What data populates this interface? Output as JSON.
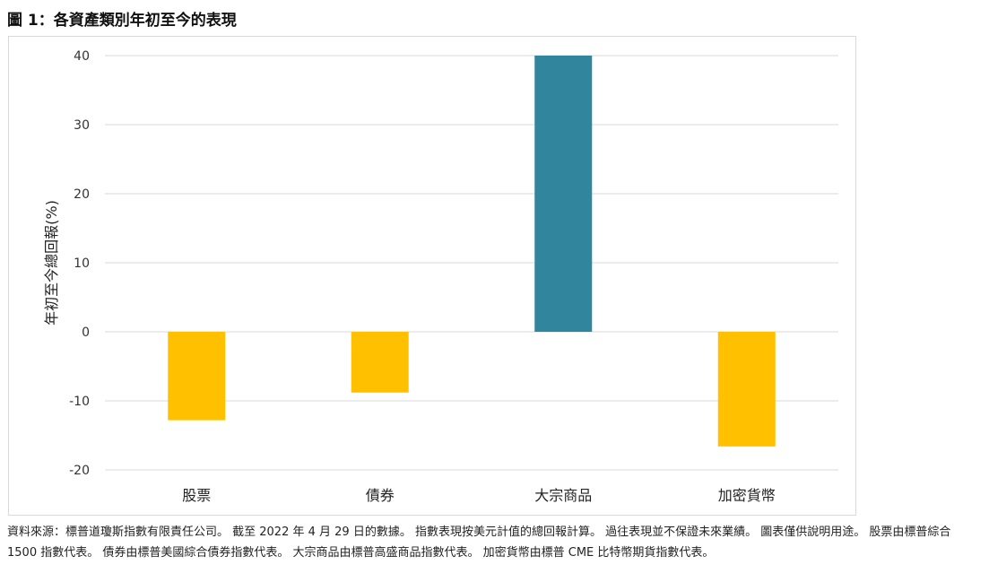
{
  "figure_title": "圖 1：各資產類別年初至今的表現",
  "footnote": "資料來源：標普道瓊斯指數有限責任公司。 截至 2022 年 4 月 29 日的數據。 指數表現按美元計值的總回報計算。 過往表現並不保證未來業績。 圖表僅供說明用途。 股票由標普綜合 1500 指數代表。 債券由標普美國綜合債券指數代表。 大宗商品由標普高盛商品指數代表。 加密貨幣由標普 CME 比特幣期貨指數代表。",
  "chart_data": {
    "type": "bar",
    "categories": [
      "股票",
      "債券",
      "大宗商品",
      "加密貨幣"
    ],
    "values": [
      -12.8,
      -8.8,
      40.0,
      -16.6
    ],
    "bar_colors": [
      "#FFC000",
      "#FFC000",
      "#31859C",
      "#FFC000"
    ],
    "title": "",
    "xlabel": "",
    "ylabel": "年初至今總回報(%)",
    "ylim": [
      -20,
      40
    ],
    "yticks": [
      40,
      30,
      20,
      10,
      0,
      -10,
      -20
    ],
    "grid": true,
    "legend": "none"
  }
}
